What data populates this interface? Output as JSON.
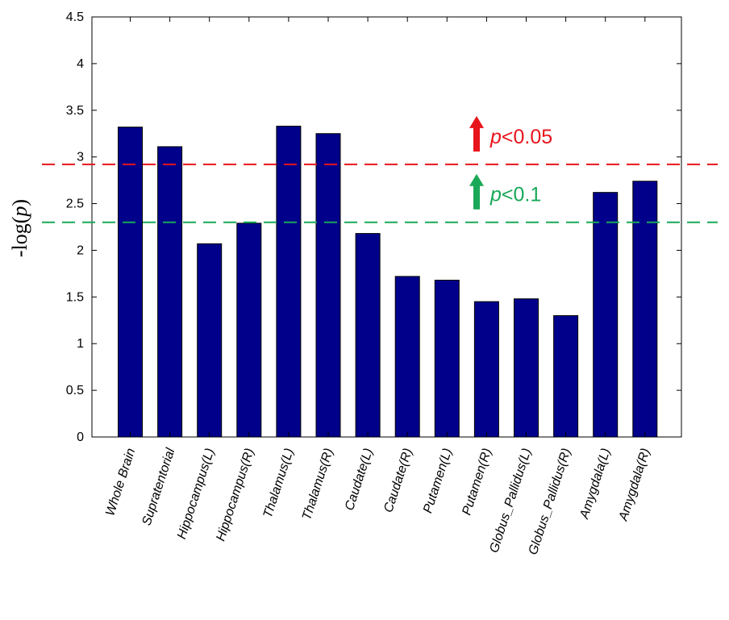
{
  "chart_data": {
    "type": "bar",
    "ylabel_prefix": "-log(",
    "ylabel_var": "p",
    "ylabel_suffix": ")",
    "ylim": [
      0,
      4.5
    ],
    "yticks": [
      0,
      0.5,
      1,
      1.5,
      2,
      2.5,
      3,
      3.5,
      4,
      4.5
    ],
    "ytick_labels": [
      "0",
      "0.5",
      "1",
      "1.5",
      "2",
      "2.5",
      "3",
      "3.5",
      "4",
      "4.5"
    ],
    "categories": [
      "Whole Brain",
      "Supratentorial",
      "Hippocampus(L)",
      "Hippocampus(R)",
      "Thalamus(L)",
      "Thalamus(R)",
      "Caudate(L)",
      "Caudate(R)",
      "Putamen(L)",
      "Putamen(R)",
      "Globus_Pallidus(L)",
      "Globus_Pallidus(R)",
      "Amygdala(L)",
      "Amygdala(R)"
    ],
    "values": [
      3.32,
      3.11,
      2.07,
      2.29,
      3.33,
      3.25,
      2.18,
      1.72,
      1.68,
      1.45,
      1.48,
      1.3,
      2.62,
      2.74
    ],
    "bar_color": "#00008b",
    "grid": false,
    "thresholds": [
      {
        "value": 2.92,
        "color": "#e8141c",
        "label_var": "p",
        "label_text": "<0.05"
      },
      {
        "value": 2.3,
        "color": "#19a857",
        "label_var": "p",
        "label_text": "<0.1"
      }
    ]
  }
}
